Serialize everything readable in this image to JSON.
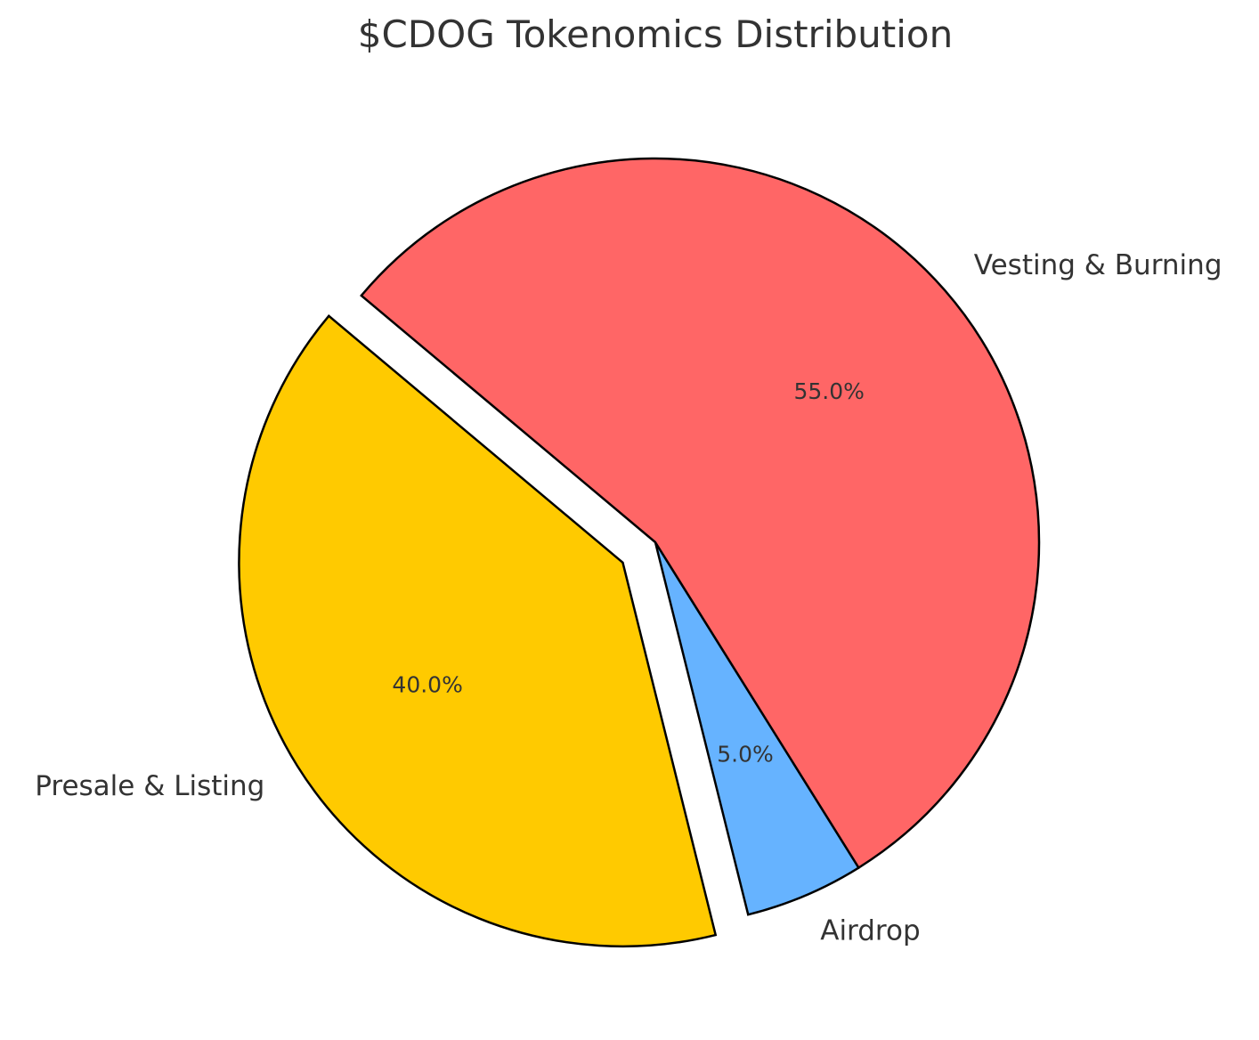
{
  "chart_data": {
    "type": "pie",
    "title": "$CDOG Tokenomics Distribution",
    "slices": [
      {
        "label": "Presale & Listing",
        "value": 40.0,
        "pct_label": "40.0%",
        "color": "#FFCA00",
        "exploded": true
      },
      {
        "label": "Airdrop",
        "value": 5.0,
        "pct_label": "5.0%",
        "color": "#66B3FF",
        "exploded": false
      },
      {
        "label": "Vesting & Burning",
        "value": 55.0,
        "pct_label": "55.0%",
        "color": "#FF6666",
        "exploded": false
      }
    ],
    "start_angle_deg": 140,
    "direction": "counterclockwise",
    "edge_color": "#000000",
    "legend": "none"
  }
}
